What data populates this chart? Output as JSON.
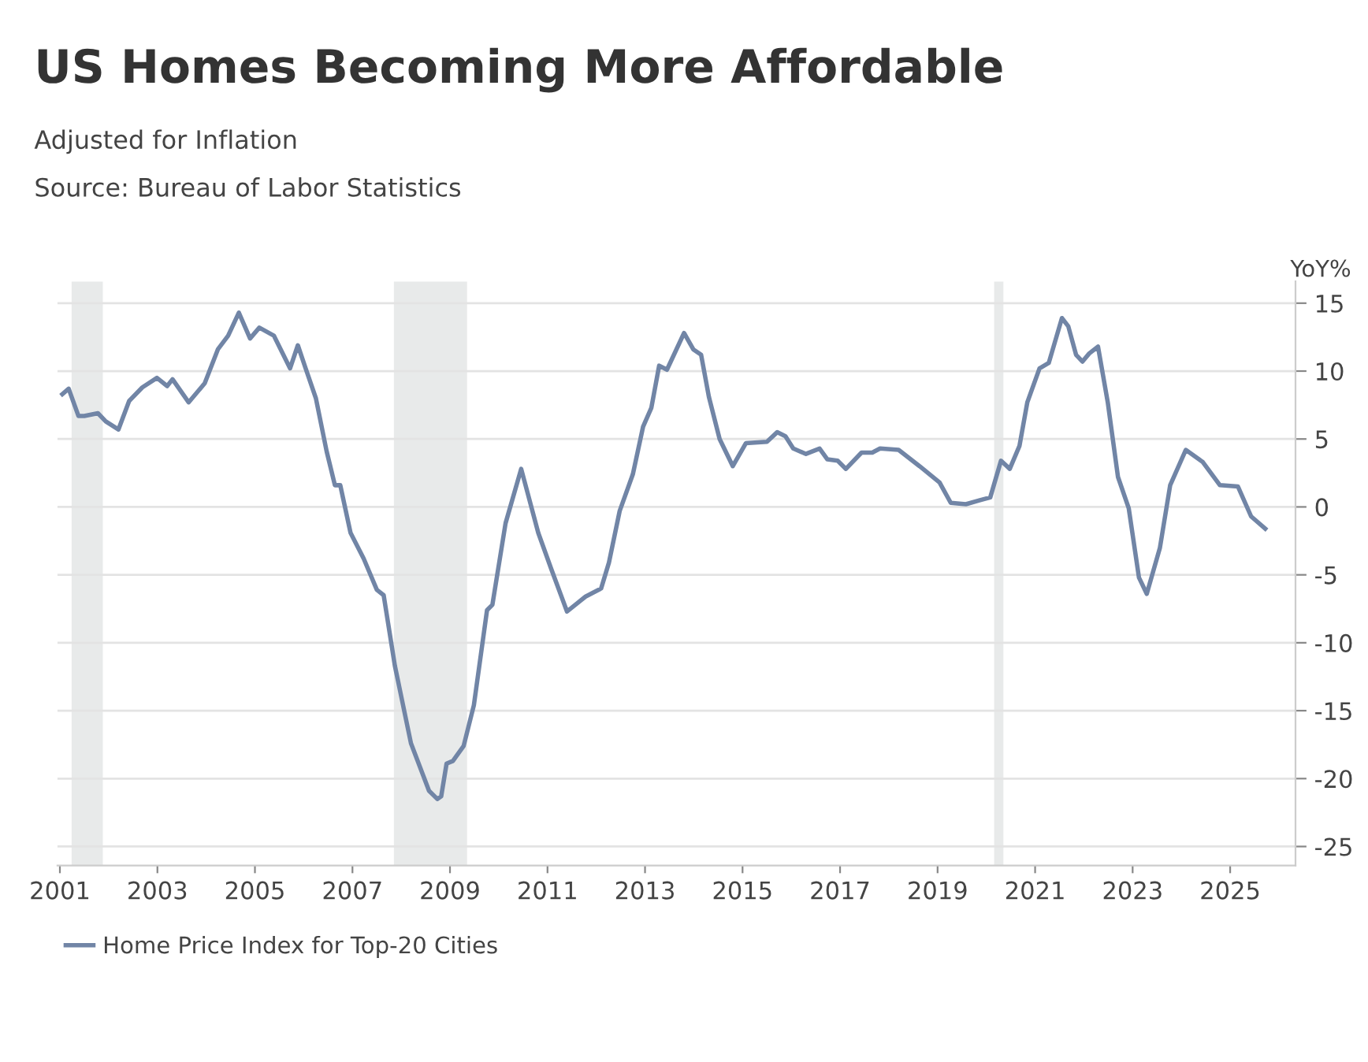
{
  "chart_data": {
    "type": "line",
    "title": "US Homes Becoming More Affordable",
    "subtitle": "Adjusted for Inflation",
    "annotations": [
      "Source: Bureau of Labor Statistics"
    ],
    "ylabel": "YoY%",
    "x": [
      2001.05,
      2001.18,
      2001.38,
      2001.5,
      2001.78,
      2001.94,
      2002.2,
      2002.42,
      2002.69,
      2002.99,
      2003.2,
      2003.31,
      2003.64,
      2003.97,
      2004.24,
      2004.45,
      2004.67,
      2004.9,
      2005.09,
      2005.39,
      2005.72,
      2005.88,
      2006.04,
      2006.25,
      2006.47,
      2006.64,
      2006.75,
      2006.96,
      2007.23,
      2007.5,
      2007.64,
      2007.87,
      2008.2,
      2008.57,
      2008.74,
      2008.82,
      2008.93,
      2009.06,
      2009.28,
      2009.49,
      2009.76,
      2009.87,
      2010.14,
      2010.46,
      2010.81,
      2011.08,
      2011.4,
      2011.78,
      2012.1,
      2012.26,
      2012.48,
      2012.75,
      2012.96,
      2013.13,
      2013.29,
      2013.45,
      2013.8,
      2013.99,
      2014.15,
      2014.31,
      2014.53,
      2014.8,
      2015.07,
      2015.5,
      2015.71,
      2015.88,
      2016.04,
      2016.3,
      2016.58,
      2016.74,
      2016.95,
      2017.12,
      2017.44,
      2017.66,
      2017.82,
      2018.2,
      2018.63,
      2019.04,
      2019.27,
      2019.58,
      2019.87,
      2020.08,
      2020.3,
      2020.48,
      2020.68,
      2020.84,
      2021.09,
      2021.28,
      2021.55,
      2021.68,
      2021.84,
      2021.97,
      2022.11,
      2022.29,
      2022.49,
      2022.7,
      2022.92,
      2023.13,
      2023.29,
      2023.56,
      2023.77,
      2024.09,
      2024.44,
      2024.79,
      2025.16,
      2025.43,
      2025.72
    ],
    "series": [
      {
        "name": "Home Price Index for Top-20 Cities",
        "color": "#7185a6",
        "values": [
          8.3,
          8.7,
          6.7,
          6.7,
          6.9,
          6.3,
          5.7,
          7.8,
          8.8,
          9.5,
          8.9,
          9.4,
          7.7,
          9.1,
          11.6,
          12.6,
          14.3,
          12.4,
          13.2,
          12.6,
          10.2,
          11.9,
          10.2,
          8.0,
          4.1,
          1.6,
          1.6,
          -1.9,
          -3.8,
          -6.1,
          -6.5,
          -11.7,
          -17.4,
          -20.9,
          -21.5,
          -21.3,
          -18.9,
          -18.7,
          -17.6,
          -14.6,
          -7.6,
          -7.2,
          -1.2,
          2.8,
          -1.9,
          -4.6,
          -7.7,
          -6.6,
          -6.0,
          -4.1,
          -0.3,
          2.4,
          5.9,
          7.3,
          10.4,
          10.1,
          12.8,
          11.6,
          11.2,
          8.1,
          5.0,
          3.0,
          4.7,
          4.8,
          5.5,
          5.2,
          4.3,
          3.9,
          4.3,
          3.5,
          3.4,
          2.8,
          4.0,
          4.0,
          4.3,
          4.2,
          3.0,
          1.8,
          0.3,
          0.2,
          0.5,
          0.7,
          3.4,
          2.8,
          4.5,
          7.7,
          10.2,
          10.6,
          13.9,
          13.3,
          11.2,
          10.7,
          11.3,
          11.8,
          7.7,
          2.2,
          -0.1,
          -5.2,
          -6.4,
          -3.0,
          1.6,
          4.2,
          3.3,
          1.6,
          1.5,
          -0.7,
          -1.6
        ]
      }
    ],
    "bands": [
      {
        "axis": "x",
        "from": 2001.24,
        "to": 2001.88,
        "color": "#e8eaea"
      },
      {
        "axis": "x",
        "from": 2007.85,
        "to": 2009.35,
        "color": "#e8eaea"
      },
      {
        "axis": "x",
        "from": 2020.16,
        "to": 2020.35,
        "color": "#e8eaea"
      }
    ],
    "xlim": [
      2000.95,
      2026.34
    ],
    "xticks": [
      2001,
      2003,
      2005,
      2007,
      2009,
      2011,
      2013,
      2015,
      2017,
      2019,
      2021,
      2023,
      2025
    ],
    "ylim": [
      -26.4,
      16.6
    ],
    "yticks": [
      -25,
      -20,
      -15,
      -10,
      -5,
      0,
      5,
      10,
      15
    ],
    "grid": "y",
    "legend": "bottom left",
    "line_style": "solid",
    "marker": "none"
  }
}
